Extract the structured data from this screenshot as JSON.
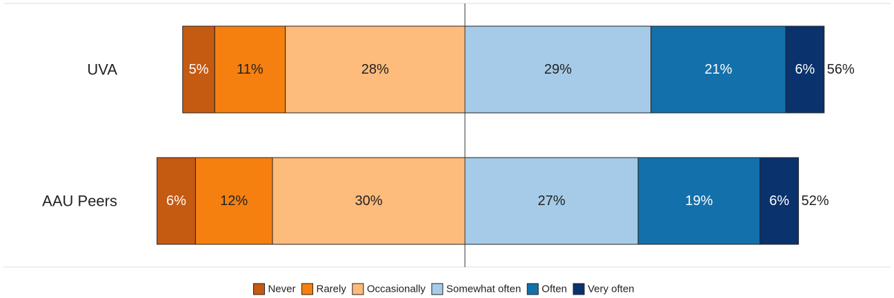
{
  "chart_data": {
    "type": "diverging_bar",
    "categories": [
      "UVA",
      "AAU Peers"
    ],
    "series": [
      {
        "name": "Never",
        "color": "#c55a11",
        "side": "left",
        "values": [
          5,
          6
        ],
        "value_labels": [
          "5%",
          "6%"
        ]
      },
      {
        "name": "Rarely",
        "color": "#f5800f",
        "side": "left",
        "values": [
          11,
          12
        ],
        "value_labels": [
          "11%",
          "12%"
        ]
      },
      {
        "name": "Occasionally",
        "color": "#fdbb7c",
        "side": "left",
        "values": [
          28,
          30
        ],
        "value_labels": [
          "28%",
          "30%"
        ]
      },
      {
        "name": "Somewhat often",
        "color": "#a5cbe8",
        "side": "right",
        "values": [
          29,
          27
        ],
        "value_labels": [
          "29%",
          "27%"
        ]
      },
      {
        "name": "Often",
        "color": "#1470ab",
        "side": "right",
        "values": [
          21,
          19
        ],
        "value_labels": [
          "21%",
          "19%"
        ]
      },
      {
        "name": "Very often",
        "color": "#0a326d",
        "side": "right",
        "values": [
          6,
          6
        ],
        "value_labels": [
          "6%",
          "6%"
        ]
      }
    ],
    "totals": [
      56,
      52
    ],
    "total_labels": [
      "56%",
      "52%"
    ],
    "legend": "bottom"
  }
}
